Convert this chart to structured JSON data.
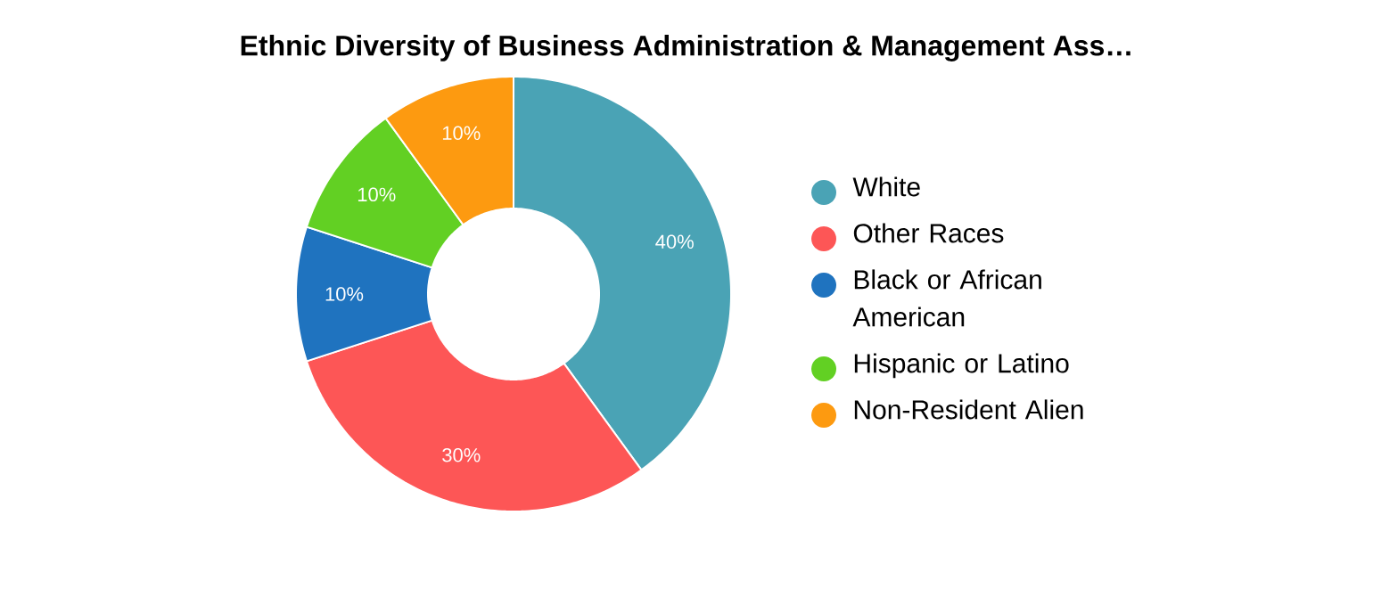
{
  "chart_data": {
    "type": "donut",
    "title": "Ethnic Diversity of Business Administration & Management Ass…",
    "categories": [
      "White",
      "Other Races",
      "Black or African American",
      "Hispanic or Latino",
      "Non-Resident Alien"
    ],
    "values": [
      40,
      30,
      10,
      10,
      10
    ],
    "colors": [
      "#4aa3b5",
      "#fd5656",
      "#1f73bf",
      "#62d023",
      "#fd9a10"
    ],
    "value_labels": [
      "40%",
      "30%",
      "10%",
      "10%",
      "10%"
    ],
    "legend": "right"
  }
}
